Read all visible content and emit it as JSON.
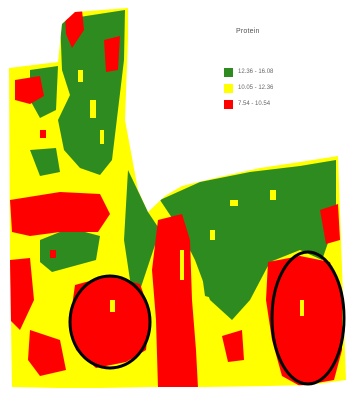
{
  "legend": {
    "title": "Protein",
    "items": [
      {
        "label": "12.36 - 16.08",
        "color": "#2e8b1f"
      },
      {
        "label": "10.05 - 12.36",
        "color": "#ffff00"
      },
      {
        "label": "7.54 - 10.54",
        "color": "#ff0000"
      }
    ]
  },
  "map": {
    "colors": {
      "high": "#2e8b1f",
      "medium": "#ffff00",
      "low": "#ff0000",
      "outline": "#000000"
    },
    "highlighted_zones": [
      "left-circle",
      "right-circle"
    ]
  }
}
